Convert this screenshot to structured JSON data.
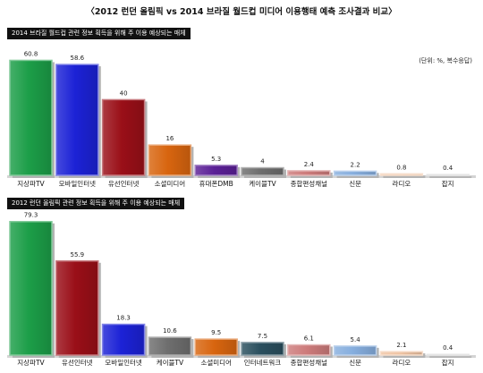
{
  "title": "〈2012 런던 올림픽 vs 2014 브라질 월드컵 미디어 이용행태 예측 조사결과 비교〉",
  "chart_data": [
    {
      "type": "bar",
      "title": "2014 브라질 월드컵 관련 정보 획득을 위해 주 이용 예상되는 매체",
      "annotation": "(단위: %, 복수응답)",
      "categories": [
        "지상파TV",
        "모바일인터넷",
        "유선인터넷",
        "소셜미디어",
        "휴대폰DMB",
        "케이블TV",
        "종합편성채널",
        "신문",
        "라디오",
        "잡지"
      ],
      "values": [
        60.8,
        58.6,
        40,
        16,
        5.3,
        4,
        2.4,
        2.2,
        0.8,
        0.4
      ],
      "colors": [
        "#1c9e48",
        "#1c22d6",
        "#9a0f18",
        "#d8650f",
        "#5b2096",
        "#6e6e6e",
        "#cd7b7b",
        "#86aede",
        "#f0c4a4",
        "#cfcfcf"
      ],
      "ylim": [
        0,
        70
      ],
      "grid": false
    },
    {
      "type": "bar",
      "title": "2012 런던 올림픽 관련 정보 획득을 위해 주 이용 예상되는 매체",
      "categories": [
        "지상파TV",
        "유선인터넷",
        "모바일인터넷",
        "케이블TV",
        "소셜미디어",
        "인터네트워크",
        "종합편성채널",
        "신문",
        "라디오",
        "잡지"
      ],
      "values": [
        79.3,
        55.9,
        18.3,
        10.6,
        9.5,
        7.5,
        6.1,
        5.4,
        2.1,
        0.4
      ],
      "colors": [
        "#1c9e48",
        "#9a0f18",
        "#1c22d6",
        "#6e6e6e",
        "#d8650f",
        "#2a4f5e",
        "#cd7b7b",
        "#86aede",
        "#f0c4a4",
        "#cfcfcf"
      ],
      "ylim": [
        0,
        85
      ],
      "grid": false
    }
  ]
}
